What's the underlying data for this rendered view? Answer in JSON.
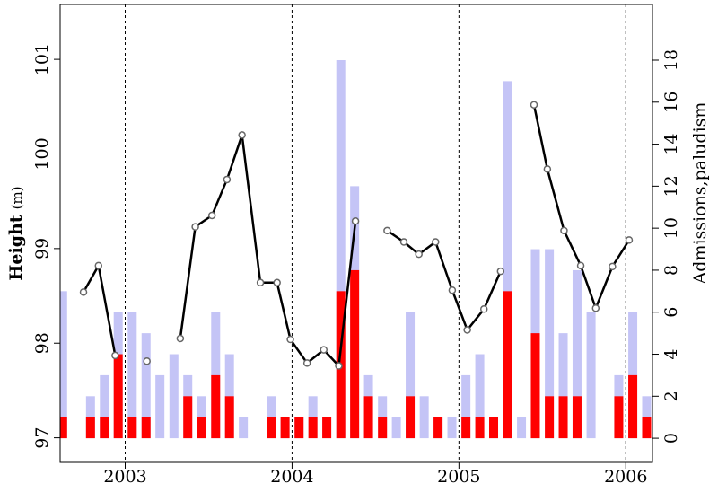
{
  "chart_data": {
    "type": "combo",
    "ylabel": "Height",
    "ylabel_unit": "(m)",
    "y2label": "Admissions,paludism",
    "xlim": [
      2002.61,
      2006.16
    ],
    "xticks": [
      2003,
      2004,
      2005,
      2006
    ],
    "grid_x": true,
    "ylim": [
      96.74,
      101.58
    ],
    "yticks": [
      97,
      98,
      99,
      100,
      101
    ],
    "y2lim": [
      -1.15,
      20.65
    ],
    "y2ticks": [
      0,
      2,
      4,
      6,
      8,
      10,
      12,
      14,
      16,
      18
    ],
    "bars": {
      "x": [
        2002.625,
        2002.708,
        2002.792,
        2002.875,
        2002.958,
        2003.042,
        2003.125,
        2003.208,
        2003.292,
        2003.375,
        2003.458,
        2003.542,
        2003.625,
        2003.708,
        2003.792,
        2003.875,
        2003.958,
        2004.042,
        2004.125,
        2004.208,
        2004.292,
        2004.375,
        2004.458,
        2004.542,
        2004.625,
        2004.708,
        2004.792,
        2004.875,
        2004.958,
        2005.042,
        2005.125,
        2005.208,
        2005.292,
        2005.375,
        2005.458,
        2005.542,
        2005.625,
        2005.708,
        2005.792,
        2005.875,
        2005.958,
        2006.042,
        2006.125
      ],
      "series": [
        {
          "color": "#c4c4f6",
          "axis": "y2",
          "values": [
            7,
            0,
            2,
            3,
            6,
            6,
            5,
            3,
            4,
            3,
            2,
            6,
            4,
            1,
            0,
            2,
            1,
            1,
            2,
            1,
            18,
            12,
            3,
            2,
            1,
            6,
            2,
            1,
            1,
            3,
            4,
            1,
            17,
            1,
            9,
            9,
            5,
            8,
            6,
            0,
            3,
            6,
            2
          ]
        },
        {
          "color": "#ff0000",
          "axis": "y2",
          "values": [
            1,
            0,
            1,
            1,
            4,
            1,
            1,
            0,
            0,
            2,
            1,
            3,
            2,
            0,
            0,
            1,
            1,
            1,
            1,
            1,
            7,
            8,
            2,
            1,
            0,
            2,
            0,
            1,
            0,
            1,
            1,
            1,
            7,
            0,
            5,
            2,
            2,
            2,
            0,
            0,
            2,
            3,
            1
          ]
        }
      ]
    },
    "lines": [
      {
        "color": "#000000",
        "x": [
          2002.75,
          2002.84,
          2002.94
        ],
        "values": [
          98.54,
          98.82,
          97.87
        ]
      },
      {
        "color": "#000000",
        "x": [
          2003.13
        ],
        "values": [
          97.81
        ]
      },
      {
        "color": "#000000",
        "x": [
          2003.33,
          2003.42,
          2003.52,
          2003.61,
          2003.7,
          2003.81,
          2003.91,
          2003.99,
          2004.09,
          2004.19,
          2004.28,
          2004.38
        ],
        "values": [
          98.05,
          99.23,
          99.35,
          99.73,
          100.2,
          98.64,
          98.64,
          98.04,
          97.79,
          97.93,
          97.76,
          99.29
        ]
      },
      {
        "color": "#000000",
        "x": [
          2004.57,
          2004.67,
          2004.76,
          2004.86,
          2004.96,
          2005.05,
          2005.15,
          2005.25
        ],
        "values": [
          99.19,
          99.07,
          98.94,
          99.07,
          98.56,
          98.14,
          98.36,
          98.76
        ]
      },
      {
        "color": "#000000",
        "x": [
          2005.45,
          2005.53,
          2005.63,
          2005.73,
          2005.82,
          2005.92,
          2006.02
        ],
        "values": [
          100.52,
          99.84,
          99.19,
          98.82,
          98.37,
          98.81,
          99.09
        ]
      }
    ]
  }
}
